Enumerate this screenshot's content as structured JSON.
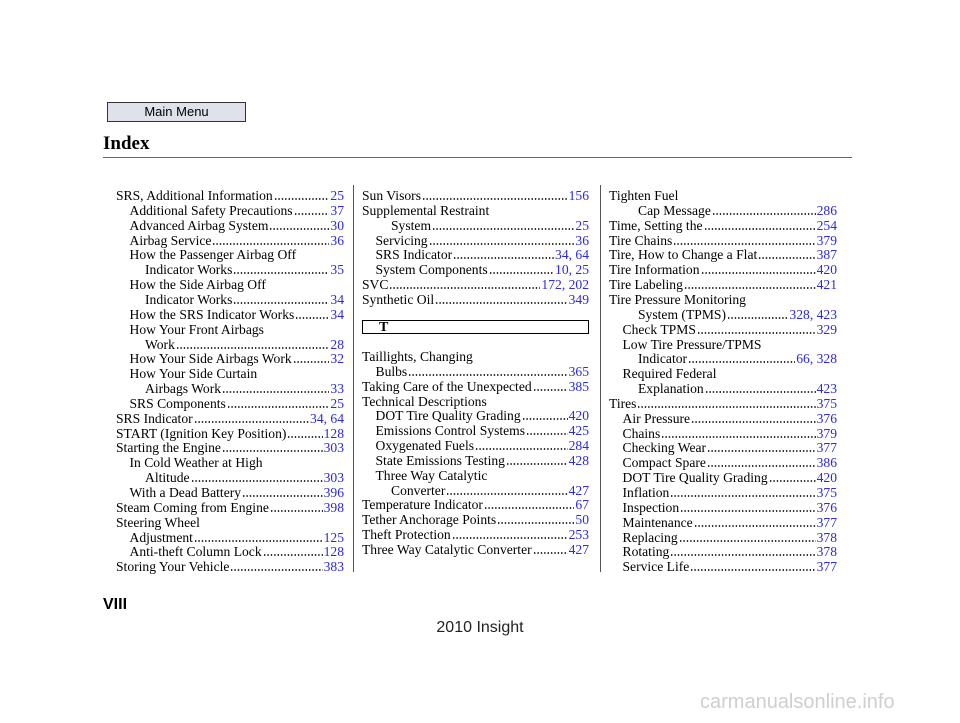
{
  "header": {
    "button": "Main Menu",
    "title": "Index"
  },
  "columns": [
    {
      "entries": [
        {
          "lines": [
            "SRS, Additional Information"
          ],
          "pages": "25",
          "sub": [
            {
              "lines": [
                "Additional Safety Precautions"
              ],
              "pages": "37"
            },
            {
              "lines": [
                "Advanced Airbag System"
              ],
              "pages": "30"
            },
            {
              "lines": [
                "Airbag Service"
              ],
              "pages": "36"
            },
            {
              "lines": [
                "How the Passenger Airbag Off",
                "Indicator Works"
              ],
              "pages": "35"
            },
            {
              "lines": [
                "How the Side Airbag Off",
                "Indicator Works"
              ],
              "pages": "34"
            },
            {
              "lines": [
                "How the SRS Indicator Works"
              ],
              "pages": "34"
            },
            {
              "lines": [
                "How Your Front Airbags",
                "Work"
              ],
              "pages": "28"
            },
            {
              "lines": [
                "How Your Side Airbags Work"
              ],
              "pages": "32"
            },
            {
              "lines": [
                "How Your Side Curtain",
                "Airbags Work"
              ],
              "pages": "33"
            },
            {
              "lines": [
                "SRS Components"
              ],
              "pages": "25"
            }
          ]
        },
        {
          "lines": [
            "SRS Indicator"
          ],
          "pages": "34, 64"
        },
        {
          "lines": [
            "START (Ignition Key Position)"
          ],
          "pages": "128"
        },
        {
          "lines": [
            "Starting the Engine"
          ],
          "pages": "303",
          "sub": [
            {
              "lines": [
                "In Cold Weather at High",
                "Altitude"
              ],
              "pages": "303"
            },
            {
              "lines": [
                "With a Dead Battery"
              ],
              "pages": "396"
            }
          ]
        },
        {
          "lines": [
            "Steam Coming from Engine"
          ],
          "pages": "398"
        },
        {
          "lines": [
            "Steering Wheel"
          ],
          "sub": [
            {
              "lines": [
                "Adjustment"
              ],
              "pages": "125"
            },
            {
              "lines": [
                "Anti-theft Column Lock"
              ],
              "pages": "128"
            }
          ]
        },
        {
          "lines": [
            "Storing Your Vehicle"
          ],
          "pages": "383"
        }
      ]
    },
    {
      "entries": [
        {
          "lines": [
            "Sun Visors"
          ],
          "pages": "156"
        },
        {
          "lines": [
            "Supplemental Restraint",
            "System"
          ],
          "pages": "25",
          "sub": [
            {
              "lines": [
                "Servicing"
              ],
              "pages": "36"
            },
            {
              "lines": [
                "SRS Indicator"
              ],
              "pages": "34, 64"
            },
            {
              "lines": [
                "System Components"
              ],
              "pages": "10, 25"
            }
          ]
        },
        {
          "lines": [
            "SVC"
          ],
          "pages": "172, 202"
        },
        {
          "lines": [
            "Synthetic Oil"
          ],
          "pages": "349"
        },
        {
          "section": "T"
        },
        {
          "lines": [
            "Taillights, Changing"
          ],
          "sub": [
            {
              "lines": [
                "Bulbs"
              ],
              "pages": "365"
            }
          ]
        },
        {
          "lines": [
            "Taking Care of the Unexpected"
          ],
          "pages": "385"
        },
        {
          "lines": [
            "Technical Descriptions"
          ],
          "sub": [
            {
              "lines": [
                "DOT Tire Quality Grading"
              ],
              "pages": "420"
            },
            {
              "lines": [
                "Emissions Control Systems"
              ],
              "pages": "425"
            },
            {
              "lines": [
                "Oxygenated Fuels"
              ],
              "pages": "284"
            },
            {
              "lines": [
                "State Emissions Testing"
              ],
              "pages": "428"
            },
            {
              "lines": [
                "Three Way Catalytic",
                "Converter"
              ],
              "pages": "427"
            }
          ]
        },
        {
          "lines": [
            "Temperature Indicator"
          ],
          "pages": "67"
        },
        {
          "lines": [
            "Tether Anchorage Points"
          ],
          "pages": "50"
        },
        {
          "lines": [
            "Theft Protection"
          ],
          "pages": "253"
        },
        {
          "lines": [
            "Three Way Catalytic Converter"
          ],
          "pages": "427"
        }
      ]
    },
    {
      "entries": [
        {
          "lines": [
            "Tighten Fuel",
            "Cap Message"
          ],
          "pages": "286"
        },
        {
          "lines": [
            "Time, Setting the"
          ],
          "pages": "254"
        },
        {
          "lines": [
            "Tire Chains"
          ],
          "pages": "379"
        },
        {
          "lines": [
            "Tire, How to Change a Flat"
          ],
          "pages": "387"
        },
        {
          "lines": [
            "Tire Information"
          ],
          "pages": "420"
        },
        {
          "lines": [
            "Tire Labeling"
          ],
          "pages": "421"
        },
        {
          "lines": [
            "Tire Pressure Monitoring",
            "System (TPMS)"
          ],
          "pages": "328, 423",
          "sub": [
            {
              "lines": [
                "Check TPMS"
              ],
              "pages": "329"
            },
            {
              "lines": [
                "Low Tire Pressure/TPMS",
                "Indicator"
              ],
              "pages": "66, 328"
            },
            {
              "lines": [
                "Required Federal",
                "Explanation"
              ],
              "pages": "423"
            }
          ]
        },
        {
          "lines": [
            "Tires"
          ],
          "pages": "375",
          "sub": [
            {
              "lines": [
                "Air Pressure"
              ],
              "pages": "376"
            },
            {
              "lines": [
                "Chains"
              ],
              "pages": "379"
            },
            {
              "lines": [
                "Checking Wear"
              ],
              "pages": "377"
            },
            {
              "lines": [
                "Compact Spare"
              ],
              "pages": "386"
            },
            {
              "lines": [
                "DOT Tire Quality Grading"
              ],
              "pages": "420"
            },
            {
              "lines": [
                "Inflation"
              ],
              "pages": "375"
            },
            {
              "lines": [
                "Inspection"
              ],
              "pages": "376"
            },
            {
              "lines": [
                "Maintenance"
              ],
              "pages": "377"
            },
            {
              "lines": [
                "Replacing"
              ],
              "pages": "378"
            },
            {
              "lines": [
                "Rotating"
              ],
              "pages": "378"
            },
            {
              "lines": [
                "Service Life"
              ],
              "pages": "377"
            }
          ]
        }
      ]
    }
  ],
  "footer": {
    "page_number": "VIII",
    "model": "2010 Insight"
  },
  "watermark": "carmanualsonline.info"
}
